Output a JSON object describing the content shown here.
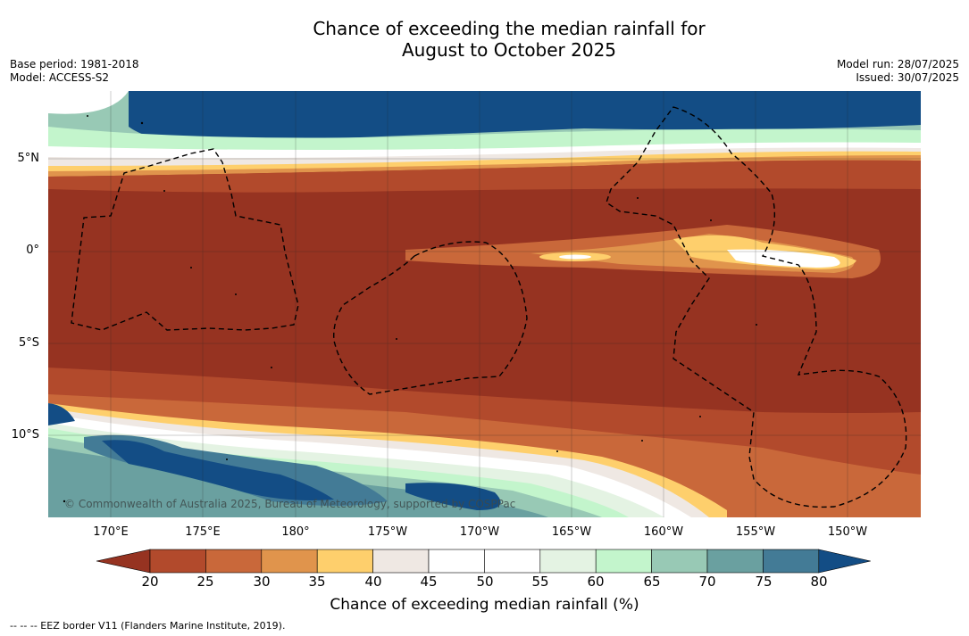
{
  "title_line1": "Chance of exceeding the median rainfall for",
  "title_line2": "August to October 2025",
  "meta_left": {
    "base_period": "Base period: 1981-2018",
    "model": "Model: ACCESS-S2"
  },
  "meta_right": {
    "model_run": "Model run: 28/07/2025",
    "issued": "Issued: 30/07/2025"
  },
  "lat_labels": [
    "5°N",
    "0°",
    "5°S",
    "10°S"
  ],
  "lon_labels": [
    "170°E",
    "175°E",
    "180°",
    "175°W",
    "170°W",
    "165°W",
    "160°W",
    "155°W",
    "150°W"
  ],
  "copyright": "© Commonwealth of Australia 2025, Bureau of Meteorology, supported by COSPPac",
  "colorbar": {
    "ticks": [
      "20",
      "25",
      "30",
      "35",
      "40",
      "45",
      "50",
      "55",
      "60",
      "65",
      "70",
      "75",
      "80"
    ],
    "colors": [
      "#963321",
      "#b24a2c",
      "#c9683a",
      "#e0944c",
      "#fecf6c",
      "#efe8e3",
      "#ffffff",
      "#ffffff",
      "#e4f3e3",
      "#c3f5cc",
      "#98c9b5",
      "#6aa0a0",
      "#437b96",
      "#134d85"
    ],
    "label": "Chance of exceeding median rainfall (%)"
  },
  "legend_note": "-- -- -- EEZ border V11 (Flanders Marine Institute, 2019)."
}
